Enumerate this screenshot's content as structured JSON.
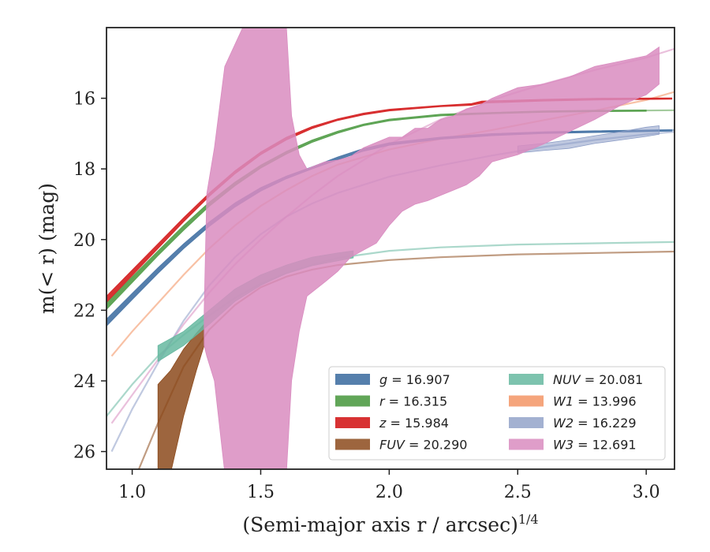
{
  "chart_data": {
    "type": "area",
    "xlabel": "(Semi-major axis r / arcsec)",
    "xlabel_superscript": "1/4",
    "ylabel": "m(< r) (mag)",
    "xlim": [
      0.9,
      3.11
    ],
    "ylim": [
      26.5,
      14.0
    ],
    "y_inverted": true,
    "grid": false,
    "legend_location": "lower-right",
    "legend_columns": 2,
    "x_ticks": [
      1.0,
      1.5,
      2.0,
      2.5,
      3.0
    ],
    "x_tick_labels": [
      "1.0",
      "1.5",
      "2.0",
      "2.5",
      "3.0"
    ],
    "y_ticks": [
      16,
      18,
      20,
      22,
      24,
      26
    ],
    "y_tick_labels": [
      "16",
      "18",
      "20",
      "22",
      "24",
      "26"
    ],
    "series": [
      {
        "key": "g",
        "band": "g",
        "value": "16.907",
        "color": "#4c78a8",
        "band_points": [
          [
            0.9,
            22.45,
            22.25
          ],
          [
            1.0,
            21.7,
            21.52
          ],
          [
            1.1,
            20.96,
            20.8
          ],
          [
            1.2,
            20.26,
            20.12
          ],
          [
            1.3,
            19.63,
            19.5
          ],
          [
            1.4,
            19.08,
            18.96
          ],
          [
            1.5,
            18.63,
            18.53
          ],
          [
            1.6,
            18.28,
            18.2
          ],
          [
            1.7,
            18.0,
            17.94
          ],
          [
            1.8,
            17.74,
            17.66
          ],
          [
            1.9,
            17.5,
            17.42
          ],
          [
            2.0,
            17.33,
            17.26
          ],
          [
            2.2,
            17.16,
            17.1
          ],
          [
            2.4,
            17.06,
            17.0
          ],
          [
            2.6,
            17.0,
            16.95
          ],
          [
            2.8,
            16.97,
            16.92
          ],
          [
            3.1,
            16.93,
            16.89
          ]
        ],
        "model": [
          [
            2.6,
            16.97
          ],
          [
            2.8,
            16.94
          ],
          [
            3.11,
            16.9
          ]
        ]
      },
      {
        "key": "r",
        "band": "r",
        "value": "16.315",
        "color": "#59a14f",
        "band_points": [
          [
            0.9,
            21.98,
            21.78
          ],
          [
            1.0,
            21.22,
            21.05
          ],
          [
            1.1,
            20.46,
            20.32
          ],
          [
            1.2,
            19.74,
            19.6
          ],
          [
            1.3,
            19.06,
            18.94
          ],
          [
            1.4,
            18.48,
            18.37
          ],
          [
            1.5,
            17.98,
            17.89
          ],
          [
            1.6,
            17.58,
            17.5
          ],
          [
            1.7,
            17.25,
            17.18
          ],
          [
            1.8,
            16.99,
            16.93
          ],
          [
            1.9,
            16.78,
            16.73
          ],
          [
            2.0,
            16.64,
            16.59
          ],
          [
            2.2,
            16.5,
            16.45
          ],
          [
            2.4,
            16.44,
            16.4
          ],
          [
            2.6,
            16.4,
            16.36
          ],
          [
            2.8,
            16.38,
            16.34
          ],
          [
            3.0,
            16.37,
            16.33
          ]
        ],
        "model": [
          [
            2.8,
            16.36
          ],
          [
            3.11,
            16.34
          ]
        ]
      },
      {
        "key": "z",
        "band": "z",
        "value": "15.984",
        "color": "#d62728",
        "band_points": [
          [
            0.9,
            21.78,
            21.6
          ],
          [
            1.0,
            21.02,
            20.86
          ],
          [
            1.1,
            20.26,
            20.12
          ],
          [
            1.2,
            19.5,
            19.38
          ],
          [
            1.3,
            18.78,
            18.68
          ],
          [
            1.4,
            18.14,
            18.05
          ],
          [
            1.5,
            17.6,
            17.52
          ],
          [
            1.6,
            17.18,
            17.1
          ],
          [
            1.7,
            16.86,
            16.8
          ],
          [
            1.8,
            16.63,
            16.58
          ],
          [
            1.9,
            16.47,
            16.42
          ],
          [
            2.0,
            16.36,
            16.31
          ],
          [
            2.2,
            16.24,
            16.2
          ],
          [
            2.32,
            16.2,
            16.15
          ],
          [
            2.36,
            16.14,
            16.08
          ],
          [
            2.6,
            16.08,
            16.03
          ],
          [
            2.8,
            16.05,
            16.0
          ],
          [
            3.1,
            16.03,
            15.99
          ]
        ],
        "model": []
      },
      {
        "key": "fuv",
        "band": "FUV",
        "value": "20.290",
        "color": "#8c4a1c",
        "alpha": 0.85,
        "band_points": [
          [
            1.1,
            26.6,
            24.1
          ],
          [
            1.15,
            26.6,
            23.7
          ],
          [
            1.2,
            25.0,
            23.1
          ],
          [
            1.25,
            23.7,
            22.65
          ],
          [
            1.28,
            23.0,
            22.4
          ]
        ],
        "model": [
          [
            1.02,
            26.6
          ],
          [
            1.1,
            25.2
          ],
          [
            1.2,
            23.6
          ],
          [
            1.3,
            22.55
          ],
          [
            1.4,
            21.85
          ],
          [
            1.5,
            21.35
          ],
          [
            1.6,
            21.05
          ],
          [
            1.7,
            20.85
          ],
          [
            1.8,
            20.72
          ],
          [
            2.0,
            20.58
          ],
          [
            2.2,
            20.5
          ],
          [
            2.5,
            20.42
          ],
          [
            3.11,
            20.34
          ]
        ]
      },
      {
        "key": "nuv",
        "band": "NUV",
        "value": "20.081",
        "color": "#66b8a0",
        "alpha": 0.85,
        "band_points": [
          [
            1.1,
            23.45,
            23.0
          ],
          [
            1.2,
            23.0,
            22.6
          ],
          [
            1.3,
            22.4,
            22.0
          ],
          [
            1.4,
            21.75,
            21.4
          ],
          [
            1.5,
            21.3,
            21.0
          ],
          [
            1.6,
            20.96,
            20.72
          ],
          [
            1.7,
            20.74,
            20.5
          ],
          [
            1.8,
            20.6,
            20.38
          ],
          [
            1.86,
            20.52,
            20.32
          ]
        ],
        "model": [
          [
            0.9,
            25.0
          ],
          [
            1.0,
            24.1
          ],
          [
            1.1,
            23.3
          ],
          [
            1.2,
            22.7
          ],
          [
            1.3,
            22.15
          ],
          [
            1.4,
            21.65
          ],
          [
            1.5,
            21.25
          ],
          [
            1.6,
            20.95
          ],
          [
            1.7,
            20.72
          ],
          [
            1.8,
            20.52
          ],
          [
            2.0,
            20.32
          ],
          [
            2.2,
            20.22
          ],
          [
            2.5,
            20.14
          ],
          [
            3.11,
            20.07
          ]
        ]
      },
      {
        "key": "w1",
        "band": "W1",
        "value": "13.996",
        "color": "#f28e5b",
        "alpha": 0.45,
        "band_points": [],
        "model": [
          [
            0.92,
            23.3
          ],
          [
            1.0,
            22.6
          ],
          [
            1.1,
            21.8
          ],
          [
            1.2,
            21.0
          ],
          [
            1.3,
            20.25
          ],
          [
            1.4,
            19.6
          ],
          [
            1.5,
            19.05
          ],
          [
            1.6,
            18.6
          ],
          [
            1.7,
            18.2
          ],
          [
            1.8,
            17.88
          ],
          [
            2.0,
            17.45
          ],
          [
            2.2,
            17.15
          ],
          [
            2.4,
            16.9
          ],
          [
            2.6,
            16.62
          ],
          [
            2.8,
            16.35
          ],
          [
            3.0,
            16.05
          ],
          [
            3.11,
            15.82
          ]
        ]
      },
      {
        "key": "w2",
        "band": "W2",
        "value": "16.229",
        "color": "#8c9dc6",
        "alpha": 0.55,
        "band_points": [
          [
            2.5,
            17.55,
            17.35
          ],
          [
            2.6,
            17.48,
            17.28
          ],
          [
            2.7,
            17.42,
            17.18
          ],
          [
            2.8,
            17.28,
            17.06
          ],
          [
            2.9,
            17.18,
            16.95
          ],
          [
            3.0,
            17.08,
            16.82
          ],
          [
            3.05,
            17.02,
            16.78
          ]
        ],
        "model": [
          [
            0.92,
            26.0
          ],
          [
            1.0,
            24.8
          ],
          [
            1.1,
            23.5
          ],
          [
            1.2,
            22.3
          ],
          [
            1.3,
            21.3
          ],
          [
            1.4,
            20.5
          ],
          [
            1.5,
            19.85
          ],
          [
            1.6,
            19.35
          ],
          [
            1.7,
            18.98
          ],
          [
            1.8,
            18.68
          ],
          [
            2.0,
            18.22
          ],
          [
            2.2,
            17.9
          ],
          [
            2.4,
            17.62
          ],
          [
            2.6,
            17.38
          ],
          [
            2.8,
            17.18
          ],
          [
            3.0,
            17.02
          ],
          [
            3.11,
            16.95
          ]
        ]
      },
      {
        "key": "w3",
        "band": "W3",
        "value": "12.691",
        "color": "#d98cc0",
        "alpha": 0.85,
        "band_points": [
          [
            1.28,
            23.0,
            22.0
          ],
          [
            1.29,
            23.3,
            18.7
          ],
          [
            1.32,
            24.0,
            17.4
          ],
          [
            1.36,
            26.6,
            15.1
          ],
          [
            1.43,
            26.6,
            14.0
          ],
          [
            1.6,
            26.6,
            14.0
          ],
          [
            1.62,
            24.0,
            16.5
          ],
          [
            1.65,
            22.6,
            17.6
          ],
          [
            1.68,
            21.6,
            18.0
          ],
          [
            1.75,
            21.2,
            17.8
          ],
          [
            1.8,
            20.9,
            17.75
          ],
          [
            1.85,
            20.5,
            17.65
          ],
          [
            1.9,
            20.3,
            17.4
          ],
          [
            1.95,
            20.1,
            17.25
          ],
          [
            2.0,
            19.6,
            17.1
          ],
          [
            2.05,
            19.2,
            17.1
          ],
          [
            2.1,
            19.0,
            16.85
          ],
          [
            2.15,
            18.9,
            16.85
          ],
          [
            2.2,
            18.75,
            16.6
          ],
          [
            2.25,
            18.6,
            16.5
          ],
          [
            2.3,
            18.45,
            16.3
          ],
          [
            2.35,
            18.2,
            16.2
          ],
          [
            2.4,
            17.8,
            16.0
          ],
          [
            2.5,
            17.6,
            15.7
          ],
          [
            2.6,
            17.3,
            15.6
          ],
          [
            2.7,
            16.95,
            15.4
          ],
          [
            2.8,
            16.6,
            15.1
          ],
          [
            2.9,
            16.2,
            14.95
          ],
          [
            3.0,
            15.9,
            14.8
          ],
          [
            3.05,
            15.6,
            14.55
          ]
        ],
        "model": [
          [
            0.92,
            25.2
          ],
          [
            1.0,
            24.4
          ],
          [
            1.1,
            23.4
          ],
          [
            1.2,
            22.4
          ],
          [
            1.3,
            21.5
          ],
          [
            1.4,
            20.7
          ],
          [
            1.5,
            20.0
          ],
          [
            1.6,
            19.35
          ],
          [
            1.7,
            18.75
          ],
          [
            1.8,
            18.2
          ],
          [
            2.0,
            17.3
          ],
          [
            2.2,
            16.6
          ],
          [
            2.4,
            16.05
          ],
          [
            2.6,
            15.6
          ],
          [
            2.8,
            15.2
          ],
          [
            3.0,
            14.85
          ],
          [
            3.11,
            14.6
          ]
        ]
      }
    ]
  }
}
